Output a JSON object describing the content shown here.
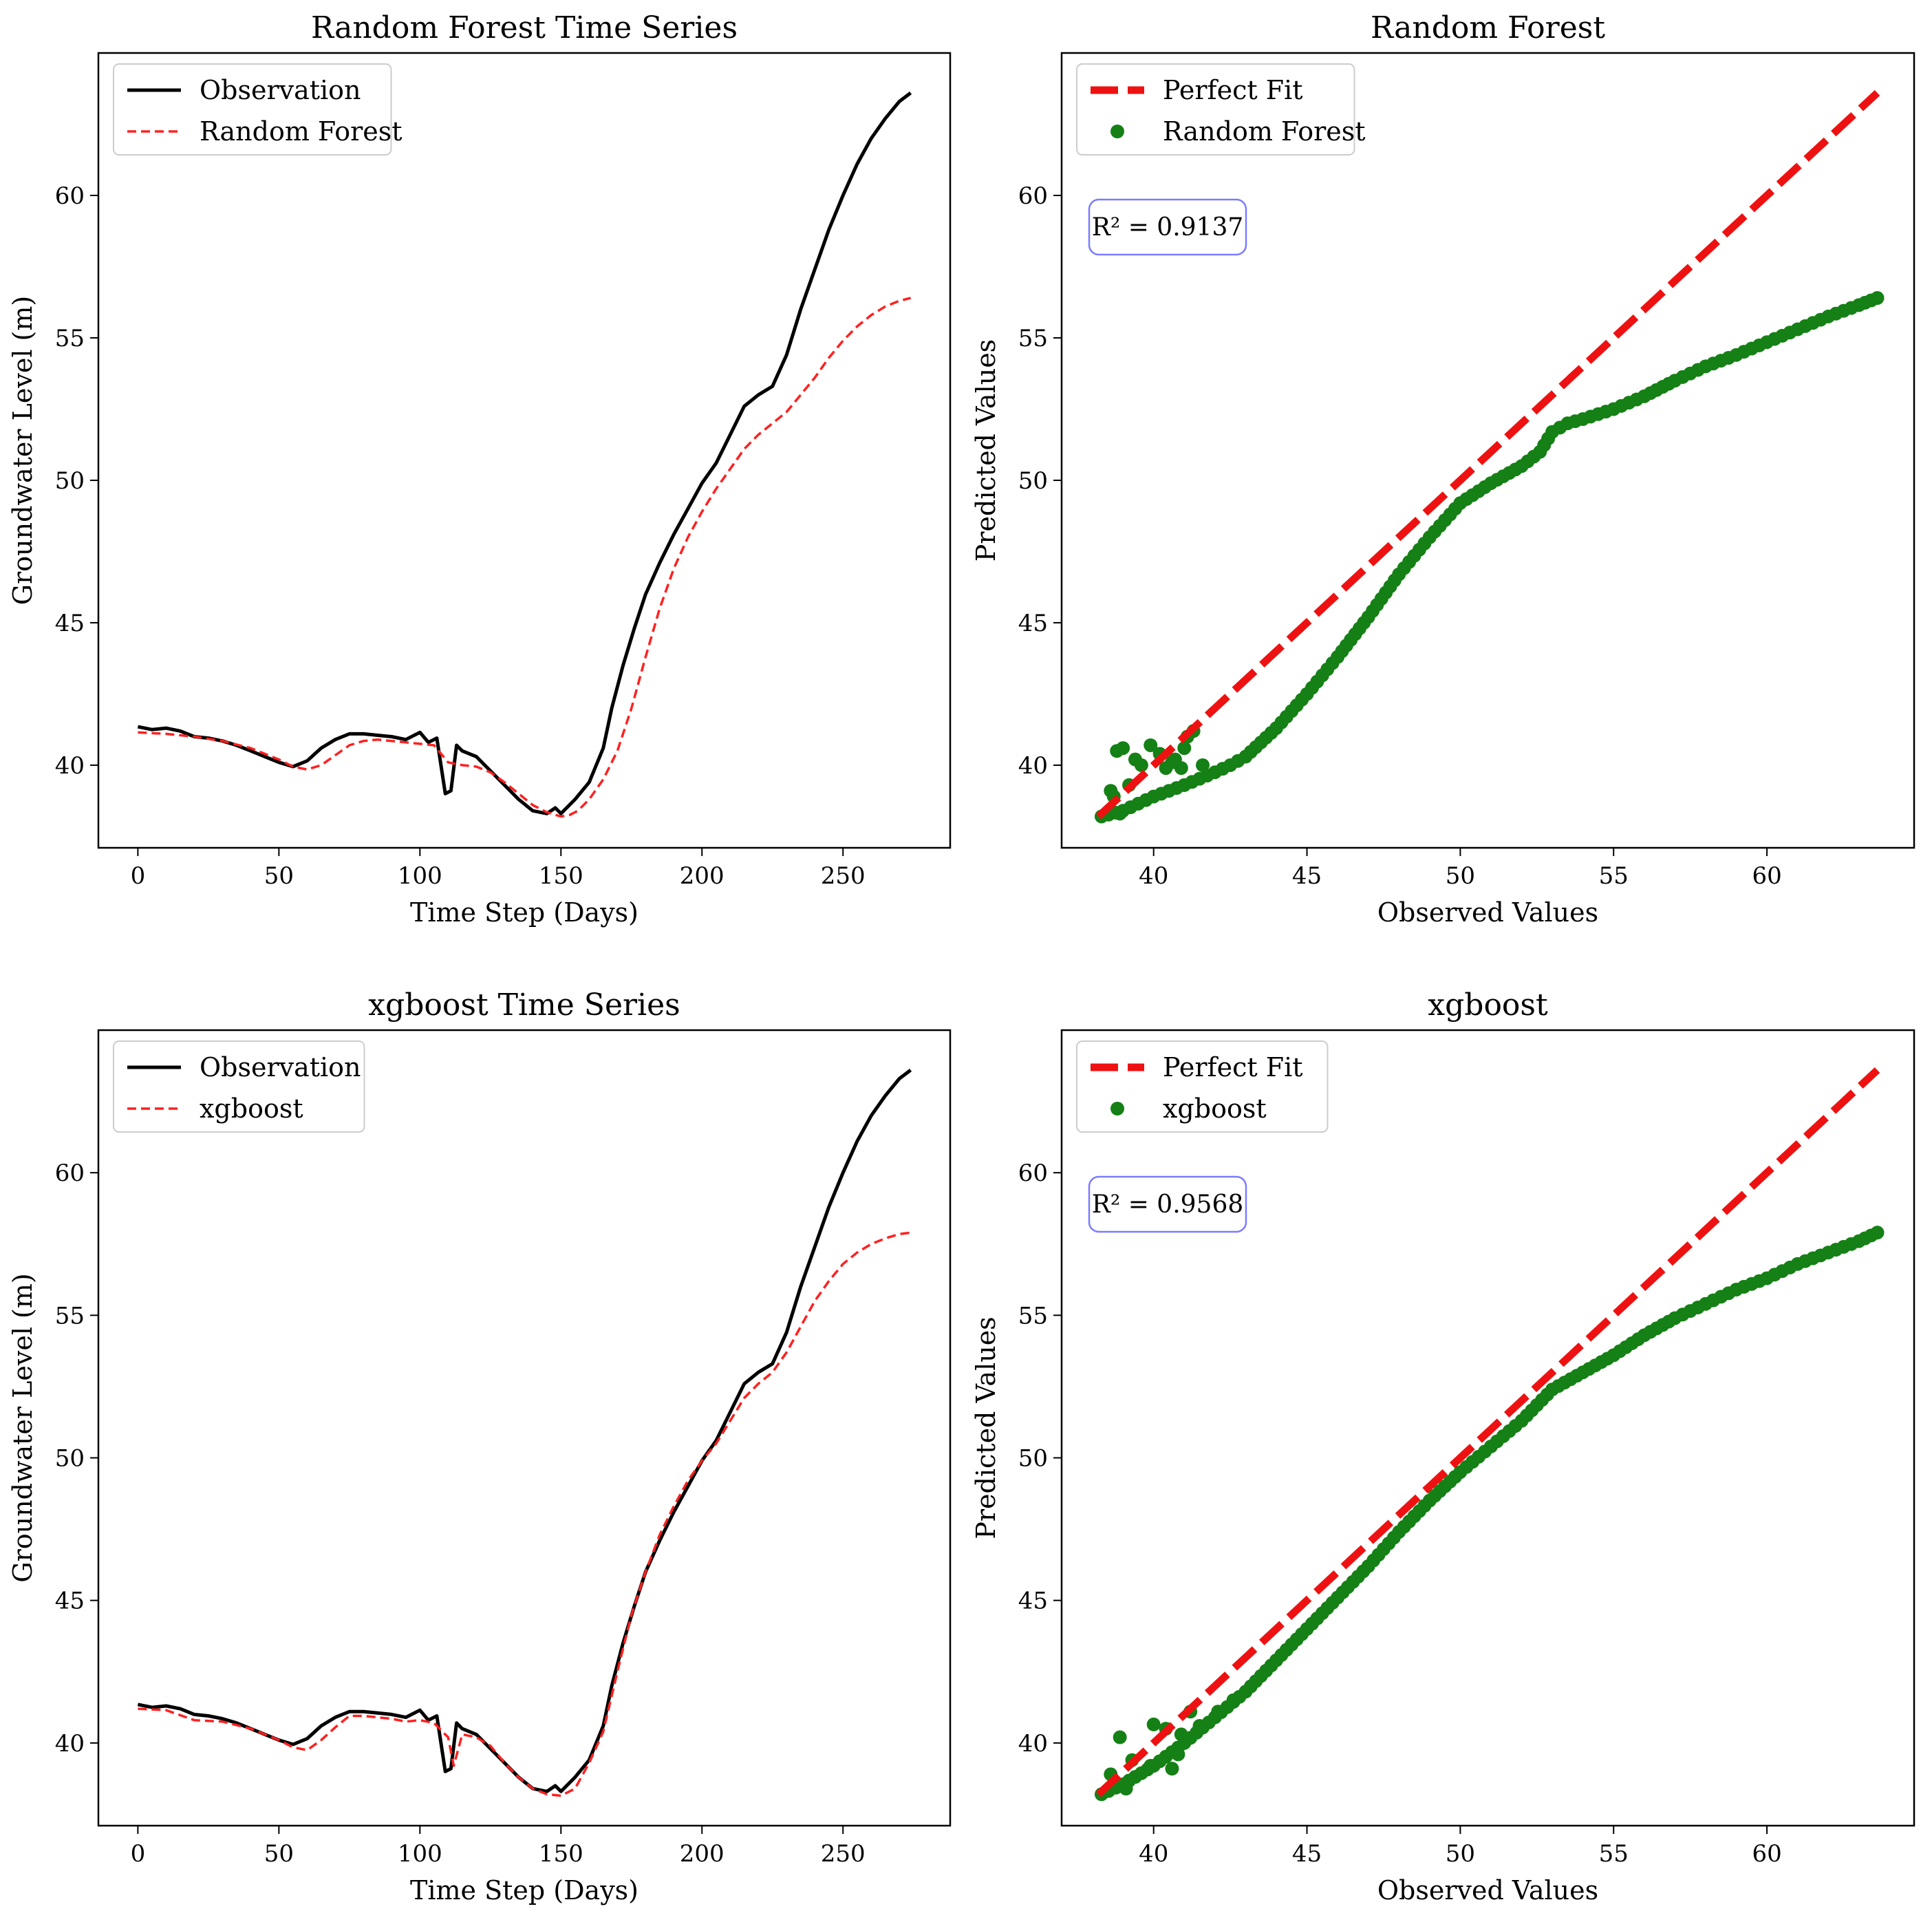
{
  "chart_data": [
    {
      "type": "line",
      "title": "Random Forest Time Series",
      "xlabel": "Time Step (Days)",
      "ylabel": "Groundwater Level (m)",
      "xlim": [
        -14,
        288
      ],
      "ylim": [
        37.1,
        65
      ],
      "xticks": [
        0,
        50,
        100,
        150,
        200,
        250
      ],
      "yticks": [
        40,
        45,
        50,
        55,
        60
      ],
      "series": [
        {
          "name": "Observation",
          "color": "#000000",
          "style": "solid",
          "x": [
            0,
            5,
            10,
            15,
            20,
            25,
            30,
            35,
            40,
            45,
            50,
            55,
            60,
            65,
            70,
            75,
            80,
            85,
            90,
            95,
            100,
            103,
            106,
            109,
            111,
            113,
            115,
            120,
            125,
            130,
            135,
            140,
            145,
            148,
            150,
            155,
            160,
            165,
            168,
            172,
            176,
            180,
            185,
            190,
            195,
            200,
            205,
            210,
            215,
            220,
            225,
            230,
            235,
            240,
            245,
            250,
            255,
            260,
            265,
            270,
            274
          ],
          "y": [
            41.35,
            41.25,
            41.3,
            41.2,
            41.0,
            40.95,
            40.85,
            40.7,
            40.5,
            40.3,
            40.1,
            39.95,
            40.15,
            40.6,
            40.9,
            41.1,
            41.1,
            41.05,
            41.0,
            40.9,
            41.15,
            40.8,
            40.95,
            39.0,
            39.1,
            40.7,
            40.5,
            40.3,
            39.8,
            39.3,
            38.8,
            38.4,
            38.3,
            38.5,
            38.3,
            38.8,
            39.4,
            40.6,
            42.0,
            43.5,
            44.8,
            46.0,
            47.1,
            48.1,
            49.0,
            49.9,
            50.6,
            51.6,
            52.6,
            53.0,
            53.3,
            54.4,
            56.0,
            57.4,
            58.8,
            60.0,
            61.1,
            62.0,
            62.7,
            63.3,
            63.6
          ]
        },
        {
          "name": "Random Forest",
          "color": "#ff2020",
          "style": "dashed",
          "x": [
            0,
            10,
            20,
            30,
            40,
            50,
            55,
            60,
            65,
            70,
            75,
            80,
            85,
            90,
            95,
            100,
            105,
            110,
            115,
            120,
            125,
            130,
            135,
            140,
            145,
            150,
            153,
            156,
            160,
            165,
            170,
            175,
            180,
            185,
            190,
            195,
            200,
            205,
            210,
            215,
            220,
            225,
            230,
            235,
            240,
            245,
            250,
            255,
            260,
            265,
            270,
            274
          ],
          "y": [
            41.15,
            41.1,
            41.0,
            40.85,
            40.6,
            40.2,
            39.95,
            39.85,
            40.0,
            40.35,
            40.7,
            40.85,
            40.9,
            40.85,
            40.8,
            40.75,
            40.7,
            40.1,
            40.0,
            39.95,
            39.75,
            39.4,
            39.0,
            38.6,
            38.35,
            38.2,
            38.25,
            38.4,
            38.8,
            39.5,
            40.5,
            42.0,
            43.8,
            45.5,
            46.9,
            48.0,
            48.9,
            49.7,
            50.4,
            51.1,
            51.6,
            52.0,
            52.4,
            53.0,
            53.6,
            54.3,
            54.9,
            55.4,
            55.8,
            56.1,
            56.3,
            56.4
          ]
        }
      ],
      "legend": {
        "position": "top-left",
        "entries": [
          {
            "label": "Observation",
            "marker": "line-solid"
          },
          {
            "label": "Random Forest",
            "marker": "line-dashed"
          }
        ]
      }
    },
    {
      "type": "scatter",
      "title": "Random Forest",
      "xlabel": "Observed Values",
      "ylabel": "Predicted Values",
      "xlim": [
        37.0,
        64.8
      ],
      "ylim": [
        37.1,
        65
      ],
      "xticks": [
        40,
        45,
        50,
        55,
        60
      ],
      "yticks": [
        40,
        45,
        50,
        55,
        60
      ],
      "perfect_fit": {
        "label": "Perfect Fit",
        "from": [
          38.2,
          38.2
        ],
        "to": [
          63.6,
          63.6
        ],
        "color": "#ee1111"
      },
      "point_color": "#158015",
      "main_curve": [
        [
          38.3,
          38.2
        ],
        [
          39.0,
          38.4
        ],
        [
          40.0,
          38.9
        ],
        [
          41.0,
          39.3
        ],
        [
          42.0,
          39.75
        ],
        [
          42.5,
          40.0
        ],
        [
          43.0,
          40.3
        ],
        [
          44.0,
          41.3
        ],
        [
          45.0,
          42.5
        ],
        [
          46.0,
          43.8
        ],
        [
          47.0,
          45.2
        ],
        [
          48.0,
          46.7
        ],
        [
          49.0,
          48.0
        ],
        [
          50.0,
          49.2
        ],
        [
          51.0,
          49.9
        ],
        [
          52.0,
          50.5
        ],
        [
          52.6,
          51.0
        ],
        [
          53.0,
          51.7
        ],
        [
          53.5,
          52.0
        ],
        [
          54.0,
          52.15
        ],
        [
          55.0,
          52.5
        ],
        [
          56.0,
          52.95
        ],
        [
          57.0,
          53.5
        ],
        [
          58.0,
          54.0
        ],
        [
          59.0,
          54.4
        ],
        [
          60.0,
          54.85
        ],
        [
          61.0,
          55.3
        ],
        [
          62.0,
          55.75
        ],
        [
          63.0,
          56.15
        ],
        [
          63.6,
          56.4
        ]
      ],
      "extra_points": [
        [
          38.8,
          40.5
        ],
        [
          39.0,
          40.6
        ],
        [
          39.4,
          40.2
        ],
        [
          39.9,
          40.7
        ],
        [
          40.2,
          40.4
        ],
        [
          40.4,
          39.9
        ],
        [
          40.7,
          40.2
        ],
        [
          40.9,
          39.9
        ],
        [
          41.1,
          41.0
        ],
        [
          41.3,
          41.2
        ],
        [
          41.0,
          40.6
        ],
        [
          40.6,
          40.1
        ],
        [
          39.6,
          40.0
        ],
        [
          39.2,
          39.3
        ],
        [
          38.7,
          38.9
        ],
        [
          38.6,
          39.1
        ],
        [
          38.9,
          38.3
        ],
        [
          41.6,
          40.0
        ]
      ],
      "r2_label": "R² = 0.9137",
      "legend": {
        "position": "top-left",
        "entries": [
          {
            "label": "Perfect Fit",
            "marker": "line-dashed-thick"
          },
          {
            "label": "Random Forest",
            "marker": "dot"
          }
        ]
      }
    },
    {
      "type": "line",
      "title": "xgboost Time Series",
      "xlabel": "Time Step (Days)",
      "ylabel": "Groundwater Level (m)",
      "xlim": [
        -14,
        288
      ],
      "ylim": [
        37.1,
        65
      ],
      "xticks": [
        0,
        50,
        100,
        150,
        200,
        250
      ],
      "yticks": [
        40,
        45,
        50,
        55,
        60
      ],
      "series": [
        {
          "name": "Observation",
          "color": "#000000",
          "style": "solid",
          "x": [
            0,
            5,
            10,
            15,
            20,
            25,
            30,
            35,
            40,
            45,
            50,
            55,
            60,
            65,
            70,
            75,
            80,
            85,
            90,
            95,
            100,
            103,
            106,
            109,
            111,
            113,
            115,
            120,
            125,
            130,
            135,
            140,
            145,
            148,
            150,
            155,
            160,
            165,
            168,
            172,
            176,
            180,
            185,
            190,
            195,
            200,
            205,
            210,
            215,
            220,
            225,
            230,
            235,
            240,
            245,
            250,
            255,
            260,
            265,
            270,
            274
          ],
          "y": [
            41.35,
            41.25,
            41.3,
            41.2,
            41.0,
            40.95,
            40.85,
            40.7,
            40.5,
            40.3,
            40.1,
            39.95,
            40.15,
            40.6,
            40.9,
            41.1,
            41.1,
            41.05,
            41.0,
            40.9,
            41.15,
            40.8,
            40.95,
            39.0,
            39.1,
            40.7,
            40.5,
            40.3,
            39.8,
            39.3,
            38.8,
            38.4,
            38.3,
            38.5,
            38.3,
            38.8,
            39.4,
            40.6,
            42.0,
            43.5,
            44.8,
            46.0,
            47.1,
            48.1,
            49.0,
            49.9,
            50.6,
            51.6,
            52.6,
            53.0,
            53.3,
            54.4,
            56.0,
            57.4,
            58.8,
            60.0,
            61.1,
            62.0,
            62.7,
            63.3,
            63.6
          ]
        },
        {
          "name": "xgboost",
          "color": "#ff2020",
          "style": "dashed",
          "x": [
            0,
            10,
            20,
            30,
            40,
            50,
            55,
            60,
            65,
            70,
            75,
            80,
            85,
            90,
            95,
            100,
            105,
            110,
            112,
            115,
            120,
            125,
            130,
            135,
            140,
            145,
            150,
            155,
            160,
            165,
            170,
            175,
            180,
            185,
            190,
            195,
            200,
            205,
            210,
            215,
            220,
            225,
            230,
            235,
            240,
            245,
            250,
            255,
            260,
            265,
            270,
            274
          ],
          "y": [
            41.2,
            41.15,
            40.8,
            40.75,
            40.5,
            40.1,
            39.85,
            39.75,
            40.1,
            40.55,
            40.95,
            40.95,
            40.9,
            40.85,
            40.75,
            40.8,
            40.7,
            40.2,
            39.2,
            40.3,
            40.2,
            39.9,
            39.3,
            38.8,
            38.4,
            38.2,
            38.15,
            38.4,
            39.3,
            40.4,
            42.5,
            44.5,
            46.0,
            47.3,
            48.3,
            49.2,
            49.9,
            50.5,
            51.3,
            52.1,
            52.6,
            53.0,
            53.7,
            54.6,
            55.5,
            56.2,
            56.8,
            57.2,
            57.5,
            57.7,
            57.85,
            57.9
          ]
        }
      ],
      "legend": {
        "position": "top-left",
        "entries": [
          {
            "label": "Observation",
            "marker": "line-solid"
          },
          {
            "label": "xgboost",
            "marker": "line-dashed"
          }
        ]
      }
    },
    {
      "type": "scatter",
      "title": "xgboost",
      "xlabel": "Observed Values",
      "ylabel": "Predicted Values",
      "xlim": [
        37.0,
        64.8
      ],
      "ylim": [
        37.1,
        65
      ],
      "xticks": [
        40,
        45,
        50,
        55,
        60
      ],
      "yticks": [
        40,
        45,
        50,
        55,
        60
      ],
      "perfect_fit": {
        "label": "Perfect Fit",
        "from": [
          38.2,
          38.2
        ],
        "to": [
          63.6,
          63.6
        ],
        "color": "#ee1111"
      },
      "point_color": "#158015",
      "main_curve": [
        [
          38.3,
          38.2
        ],
        [
          39.0,
          38.55
        ],
        [
          40.0,
          39.2
        ],
        [
          41.0,
          40.0
        ],
        [
          42.0,
          40.9
        ],
        [
          43.0,
          41.8
        ],
        [
          44.0,
          42.9
        ],
        [
          45.0,
          44.0
        ],
        [
          46.0,
          45.1
        ],
        [
          47.0,
          46.2
        ],
        [
          48.0,
          47.4
        ],
        [
          49.0,
          48.5
        ],
        [
          50.0,
          49.5
        ],
        [
          51.0,
          50.4
        ],
        [
          52.0,
          51.3
        ],
        [
          53.0,
          52.4
        ],
        [
          54.0,
          53.0
        ],
        [
          55.0,
          53.6
        ],
        [
          56.0,
          54.3
        ],
        [
          57.0,
          54.9
        ],
        [
          58.0,
          55.4
        ],
        [
          59.0,
          55.9
        ],
        [
          60.0,
          56.3
        ],
        [
          61.0,
          56.8
        ],
        [
          62.0,
          57.2
        ],
        [
          63.0,
          57.6
        ],
        [
          63.6,
          57.9
        ]
      ],
      "extra_points": [
        [
          38.9,
          40.2
        ],
        [
          40.0,
          40.65
        ],
        [
          40.6,
          39.1
        ],
        [
          40.8,
          39.6
        ],
        [
          41.2,
          41.1
        ],
        [
          41.5,
          40.6
        ],
        [
          42.1,
          41.1
        ],
        [
          42.6,
          41.5
        ],
        [
          40.4,
          40.5
        ],
        [
          39.3,
          39.4
        ],
        [
          39.1,
          38.4
        ],
        [
          38.6,
          38.9
        ],
        [
          39.9,
          39.2
        ],
        [
          40.9,
          40.3
        ]
      ],
      "r2_label": "R² = 0.9568",
      "legend": {
        "position": "top-left",
        "entries": [
          {
            "label": "Perfect Fit",
            "marker": "line-dashed-thick"
          },
          {
            "label": "xgboost",
            "marker": "dot"
          }
        ]
      }
    }
  ]
}
